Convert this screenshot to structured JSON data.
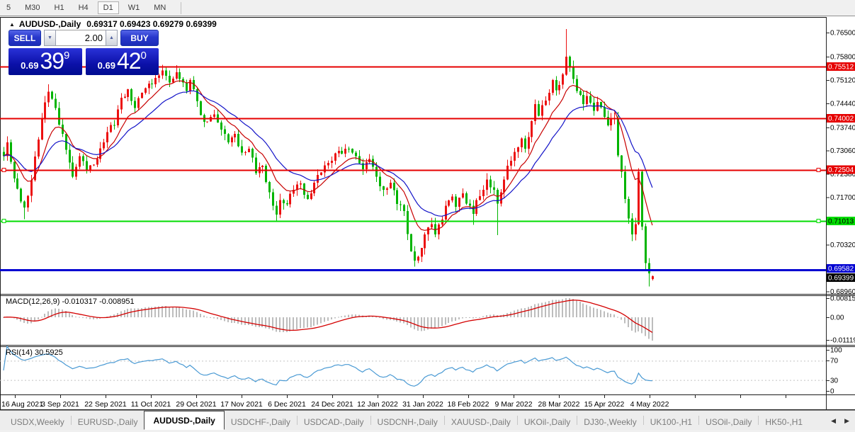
{
  "timeframe_bar": {
    "items": [
      "5",
      "M30",
      "H1",
      "H4",
      "D1",
      "W1",
      "MN"
    ],
    "selected": "D1"
  },
  "chart_title": {
    "symbol": "AUDUSD-,Daily",
    "ohlc": "0.69317 0.69423 0.69279 0.69399"
  },
  "trade_panel": {
    "sell_label": "SELL",
    "buy_label": "BUY",
    "volume": "2.00",
    "sell_price": {
      "small": "0.69",
      "big": "39",
      "sup": "9"
    },
    "buy_price": {
      "small": "0.69",
      "big": "42",
      "sup": "0"
    }
  },
  "tabs": {
    "items": [
      "USDX,Weekly",
      "EURUSD-,Daily",
      "AUDUSD-,Daily",
      "USDCHF-,Daily",
      "USDCAD-,Daily",
      "USDCNH-,Daily",
      "XAUUSD-,Daily",
      "UKOil-,Daily",
      "DJ30-,Weekly",
      "UK100-,H1",
      "USOil-,Daily",
      "HK50-,H1"
    ],
    "selected": "AUDUSD-,Daily"
  },
  "chart_data": {
    "type": "candlestick",
    "symbol": "AUDUSD-,Daily",
    "ohlc": {
      "open": 0.69317,
      "high": 0.69423,
      "low": 0.69279,
      "close": 0.69399
    },
    "candle_count": 189,
    "price_anchors": [
      [
        0,
        0.729
      ],
      [
        1,
        0.733
      ],
      [
        3,
        0.7225
      ],
      [
        6,
        0.714
      ],
      [
        8,
        0.722
      ],
      [
        11,
        0.74
      ],
      [
        13,
        0.7478
      ],
      [
        15,
        0.743
      ],
      [
        17,
        0.7355
      ],
      [
        20,
        0.723
      ],
      [
        22,
        0.729
      ],
      [
        24,
        0.725
      ],
      [
        27,
        0.7282
      ],
      [
        30,
        0.736
      ],
      [
        32,
        0.738
      ],
      [
        34,
        0.746
      ],
      [
        36,
        0.7485
      ],
      [
        38,
        0.743
      ],
      [
        40,
        0.7475
      ],
      [
        43,
        0.75
      ],
      [
        46,
        0.754
      ],
      [
        48,
        0.7505
      ],
      [
        50,
        0.7535
      ],
      [
        53,
        0.748
      ],
      [
        54,
        0.7512
      ],
      [
        56,
        0.745
      ],
      [
        58,
        0.739
      ],
      [
        61,
        0.7412
      ],
      [
        63,
        0.7368
      ],
      [
        65,
        0.733
      ],
      [
        67,
        0.7355
      ],
      [
        69,
        0.73
      ],
      [
        71,
        0.7312
      ],
      [
        73,
        0.724
      ],
      [
        75,
        0.7262
      ],
      [
        77,
        0.7185
      ],
      [
        79,
        0.712
      ],
      [
        80,
        0.7162
      ],
      [
        82,
        0.715
      ],
      [
        84,
        0.7192
      ],
      [
        86,
        0.721
      ],
      [
        88,
        0.7165
      ],
      [
        90,
        0.7212
      ],
      [
        92,
        0.7242
      ],
      [
        94,
        0.727
      ],
      [
        97,
        0.7305
      ],
      [
        100,
        0.7312
      ],
      [
        102,
        0.729
      ],
      [
        104,
        0.7252
      ],
      [
        106,
        0.7282
      ],
      [
        108,
        0.723
      ],
      [
        110,
        0.7192
      ],
      [
        112,
        0.7212
      ],
      [
        114,
        0.715
      ],
      [
        116,
        0.713
      ],
      [
        118,
        0.7012
      ],
      [
        119,
        0.6985
      ],
      [
        121,
        0.7022
      ],
      [
        122,
        0.7062
      ],
      [
        124,
        0.7092
      ],
      [
        125,
        0.7062
      ],
      [
        127,
        0.7105
      ],
      [
        128,
        0.7145
      ],
      [
        130,
        0.7172
      ],
      [
        131,
        0.7142
      ],
      [
        133,
        0.7182
      ],
      [
        134,
        0.7152
      ],
      [
        136,
        0.7122
      ],
      [
        137,
        0.7162
      ],
      [
        139,
        0.7192
      ],
      [
        140,
        0.7222
      ],
      [
        142,
        0.7192
      ],
      [
        143,
        0.7152
      ],
      [
        145,
        0.7222
      ],
      [
        146,
        0.7262
      ],
      [
        148,
        0.7302
      ],
      [
        150,
        0.7342
      ],
      [
        151,
        0.7312
      ],
      [
        153,
        0.7392
      ],
      [
        154,
        0.7442
      ],
      [
        155,
        0.7408
      ],
      [
        157,
        0.7452
      ],
      [
        159,
        0.7512
      ],
      [
        160,
        0.7482
      ],
      [
        162,
        0.7528
      ],
      [
        163,
        0.758
      ],
      [
        164,
        0.7552
      ],
      [
        165,
        0.7515
      ],
      [
        166,
        0.748
      ],
      [
        168,
        0.7442
      ],
      [
        169,
        0.7465
      ],
      [
        171,
        0.7422
      ],
      [
        172,
        0.7448
      ],
      [
        174,
        0.7405
      ],
      [
        175,
        0.738
      ],
      [
        177,
        0.7402
      ],
      [
        178,
        0.7292
      ],
      [
        179,
        0.7245
      ],
      [
        180,
        0.7165
      ],
      [
        181,
        0.7108
      ],
      [
        182,
        0.7062
      ],
      [
        183,
        0.7092
      ],
      [
        184,
        0.7245
      ],
      [
        185,
        0.7085
      ],
      [
        186,
        0.6978
      ],
      [
        187,
        0.6948
      ],
      [
        188,
        0.69399
      ]
    ],
    "wick_overrides": [
      [
        6,
        "low",
        0.7106
      ],
      [
        13,
        "high",
        0.75
      ],
      [
        50,
        "high",
        0.7555
      ],
      [
        79,
        "low",
        0.71
      ],
      [
        119,
        "low",
        0.6968
      ],
      [
        136,
        "low",
        0.709
      ],
      [
        143,
        "low",
        0.706
      ],
      [
        163,
        "high",
        0.7661
      ],
      [
        182,
        "low",
        0.7042
      ],
      [
        184,
        "high",
        0.7255
      ],
      [
        186,
        "low",
        0.696
      ],
      [
        187,
        "low",
        0.691
      ],
      [
        188,
        "high",
        0.69423
      ],
      [
        188,
        "low",
        0.69279
      ]
    ],
    "moving_averages": [
      {
        "period": 10,
        "color": "#c80000"
      },
      {
        "period": 21,
        "color": "#1414c8"
      }
    ],
    "hlines": [
      {
        "value": 0.75512,
        "label": "0.75512",
        "color": "#e60000",
        "text_color": "#ffffff",
        "width": 2,
        "handles": false
      },
      {
        "value": 0.74002,
        "label": "0.74002",
        "color": "#e60000",
        "text_color": "#ffffff",
        "width": 2,
        "handles": false
      },
      {
        "value": 0.72504,
        "label": "0.72504",
        "color": "#e60000",
        "text_color": "#ffffff",
        "width": 2,
        "handles": true
      },
      {
        "value": 0.71013,
        "label": "0.71013",
        "color": "#00dc00",
        "text_color": "#000000",
        "width": 2,
        "handles": true
      },
      {
        "value": 0.69582,
        "label": "0.69582",
        "color": "#0000d2",
        "text_color": "#ffffff",
        "width": 3,
        "handles": false
      }
    ],
    "current_price": {
      "value": 0.69399,
      "label": "0.69399",
      "color": "#000000",
      "text_color": "#ffffff"
    },
    "y_axis_ticks": [
      {
        "label": "0.76500",
        "value": 0.765
      },
      {
        "label": "0.75800",
        "value": 0.758
      },
      {
        "label": "0.75120",
        "value": 0.7512
      },
      {
        "label": "0.74440",
        "value": 0.7444
      },
      {
        "label": "0.73740",
        "value": 0.7374
      },
      {
        "label": "0.73060",
        "value": 0.7306
      },
      {
        "label": "0.72380",
        "value": 0.7238
      },
      {
        "label": "0.71700",
        "value": 0.717
      },
      {
        "label": "0.70320",
        "value": 0.7032
      },
      {
        "label": "0.68960",
        "value": 0.6896
      }
    ],
    "x_axis_dates": [
      "16 Aug 2021",
      "3 Sep 2021",
      "22 Sep 2021",
      "11 Oct 2021",
      "29 Oct 2021",
      "17 Nov 2021",
      "6 Dec 2021",
      "24 Dec 2021",
      "12 Jan 2022",
      "31 Jan 2022",
      "18 Feb 2022",
      "9 Mar 2022",
      "28 Mar 2022",
      "15 Apr 2022",
      "4 May 2022"
    ],
    "indicators": [
      {
        "name": "MACD",
        "title": "MACD(12,26,9) -0.010317 -0.008951",
        "params": [
          12,
          26,
          9
        ],
        "values": {
          "macd": -0.010317,
          "signal": -0.008951
        },
        "scale_labels": [
          "0.008152",
          "0.00",
          "-0.011196"
        ],
        "histogram_color": "#bdbdbd",
        "signal_color": "#d40000"
      },
      {
        "name": "RSI",
        "title": "RSI(14) 30.5925",
        "period": 14,
        "value": 30.5925,
        "levels": [
          100,
          70,
          30,
          0
        ],
        "scale_labels": [
          "100",
          "70",
          "30",
          "0"
        ],
        "line_color": "#4a9ad4",
        "level_line_color": "#c4c4c4"
      }
    ],
    "colors": {
      "bull": "#ec1010",
      "bear": "#00b400",
      "background": "#ffffff"
    }
  }
}
